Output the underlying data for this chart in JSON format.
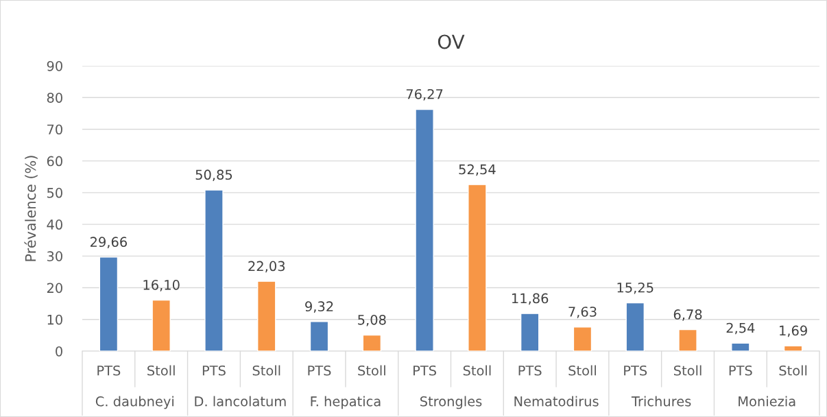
{
  "chart_data": {
    "type": "bar",
    "title": "OV",
    "ylabel": "Prévalence (%)",
    "categories": [
      "C. daubneyi",
      "D. lancolatum",
      "F. hepatica",
      "Strongles",
      "Nematodirus",
      "Trichures",
      "Moniezia"
    ],
    "series": [
      {
        "name": "PTS",
        "color": "#4f81bd",
        "values": [
          29.66,
          50.85,
          9.32,
          76.27,
          11.86,
          15.25,
          2.54
        ],
        "value_labels": [
          "29,66",
          "50,85",
          "9,32",
          "76,27",
          "11,86",
          "15,25",
          "2,54"
        ]
      },
      {
        "name": "Stoll",
        "color": "#f79646",
        "values": [
          16.1,
          22.03,
          5.08,
          52.54,
          7.63,
          6.78,
          1.69
        ],
        "value_labels": [
          "16,10",
          "22,03",
          "5,08",
          "52,54",
          "7,63",
          "6,78",
          "1,69"
        ]
      }
    ],
    "ylim": [
      0,
      90
    ],
    "yticks": [
      0,
      10,
      20,
      30,
      40,
      50,
      60,
      70,
      80,
      90
    ],
    "grid": "y",
    "legend": false
  }
}
